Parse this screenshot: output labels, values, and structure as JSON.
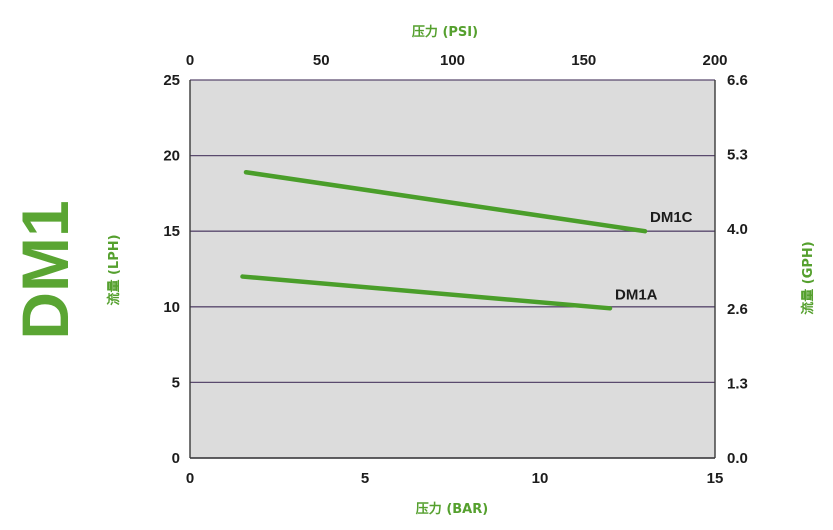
{
  "page_title": "DM1",
  "colors": {
    "accent_green": "#55a02e",
    "series_green": "#4a9e2a",
    "plot_background": "#dcdcdc",
    "gridline": "#5a4a6e",
    "text_dark": "#1c1c1c"
  },
  "chart_data": {
    "type": "line",
    "title": "DM1",
    "xlabel": "压力 (BAR)",
    "ylabel": "流量 (LPH)",
    "x2label": "压力 (PSI)",
    "y2label": "流量 (GPH)",
    "xlim": [
      0,
      15
    ],
    "ylim": [
      0,
      25
    ],
    "x_ticks": [
      "0",
      "5",
      "10",
      "15"
    ],
    "y_ticks": [
      "0",
      "5",
      "10",
      "15",
      "20",
      "25"
    ],
    "x2lim": [
      0,
      200
    ],
    "x2_ticks": [
      "0",
      "50",
      "100",
      "150",
      "200"
    ],
    "y2lim": [
      0,
      6.6
    ],
    "y2_ticks": [
      "0.0",
      "1.3",
      "2.6",
      "4.0",
      "5.3",
      "6.6"
    ],
    "grid": "horizontal",
    "series": [
      {
        "name": "DM1C",
        "x": [
          1.6,
          13.0
        ],
        "y": [
          18.9,
          15.0
        ]
      },
      {
        "name": "DM1A",
        "x": [
          1.5,
          12.0
        ],
        "y": [
          12.0,
          9.9
        ]
      }
    ]
  }
}
